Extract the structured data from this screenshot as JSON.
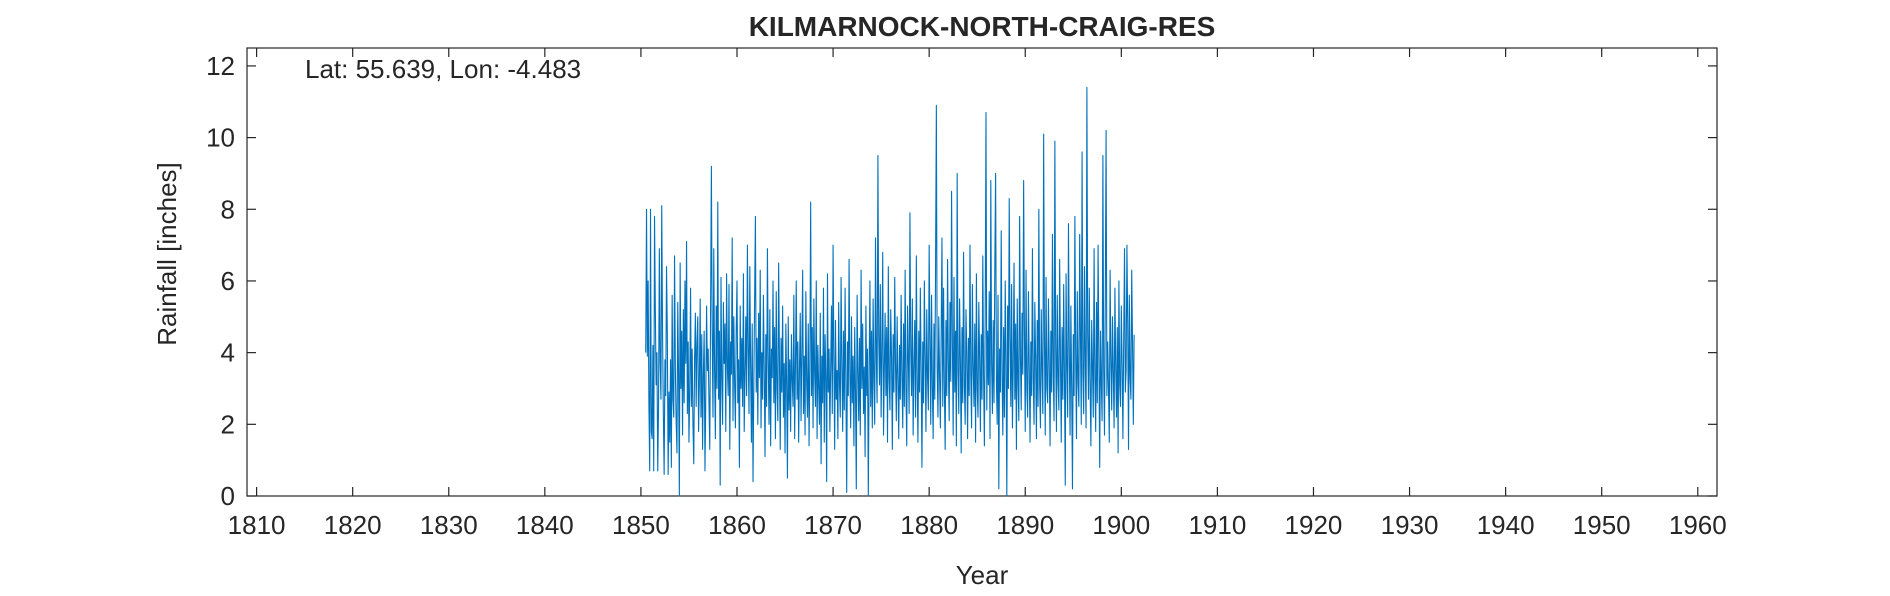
{
  "chart_data": {
    "type": "line",
    "title": "KILMARNOCK-NORTH-CRAIG-RES",
    "annotation": "Lat: 55.639, Lon: -4.483",
    "xlabel": "Year",
    "ylabel": "Rainfall [inches]",
    "xlim": [
      1809,
      1962
    ],
    "ylim": [
      0,
      12.5
    ],
    "xticks": [
      1810,
      1820,
      1830,
      1840,
      1850,
      1860,
      1870,
      1880,
      1890,
      1900,
      1910,
      1920,
      1930,
      1940,
      1950,
      1960
    ],
    "yticks": [
      0,
      2,
      4,
      6,
      8,
      10,
      12
    ],
    "grid": false,
    "legend": "none",
    "series": [
      {
        "color": "#0072BD",
        "x_start": 1850.5,
        "step": 0.0833333,
        "values": [
          4.0,
          8.0,
          3.9,
          6.0,
          2.5,
          0.7,
          8.0,
          1.8,
          1.6,
          4.2,
          0.7,
          7.8,
          5.2,
          3.1,
          4.0,
          0.7,
          2.5,
          6.9,
          3.7,
          2.7,
          8.1,
          4.6,
          2.3,
          0.6,
          3.8,
          2.8,
          6.4,
          4.5,
          0.6,
          2.9,
          1.5,
          3.8,
          0.8,
          5.6,
          2.7,
          2.2,
          6.7,
          3.6,
          2.1,
          1.2,
          5.4,
          3.4,
          0.0,
          6.5,
          3.0,
          4.6,
          1.7,
          5.2,
          2.6,
          6.0,
          3.7,
          7.1,
          2.3,
          4.3,
          1.5,
          3.0,
          5.8,
          2.5,
          4.1,
          2.0,
          0.9,
          3.8,
          5.1,
          2.5,
          4.3,
          5.0,
          1.8,
          3.2,
          5.5,
          2.2,
          4.5,
          1.3,
          3.4,
          4.6,
          0.7,
          2.7,
          5.3,
          3.5,
          4.1,
          2.6,
          1.3,
          5.2,
          9.2,
          4.6,
          2.2,
          6.9,
          3.5,
          1.6,
          5.3,
          3.0,
          8.2,
          2.7,
          4.6,
          0.3,
          6.1,
          3.3,
          2.0,
          5.4,
          3.7,
          4.8,
          1.8,
          6.2,
          3.6,
          2.8,
          5.9,
          1.3,
          4.3,
          3.4,
          7.2,
          2.1,
          5.0,
          3.2,
          1.9,
          4.6,
          6.0,
          2.6,
          3.8,
          0.8,
          5.3,
          3.0,
          4.4,
          2.5,
          6.2,
          1.8,
          3.4,
          5.0,
          2.8,
          7.0,
          4.1,
          2.3,
          6.4,
          3.6,
          1.5,
          4.8,
          0.4,
          3.1,
          5.5,
          7.8,
          2.9,
          4.4,
          2.0,
          5.1,
          3.3,
          6.3,
          1.9,
          4.0,
          2.7,
          5.6,
          3.5,
          1.1,
          4.5,
          2.5,
          6.9,
          3.8,
          2.0,
          5.2,
          1.4,
          4.1,
          3.3,
          6.0,
          2.6,
          4.7,
          1.6,
          5.7,
          3.0,
          2.1,
          6.5,
          3.9,
          1.3,
          4.4,
          2.9,
          5.3,
          2.2,
          3.7,
          1.2,
          4.8,
          3.1,
          0.5,
          5.0,
          2.4,
          3.8,
          1.8,
          4.5,
          3.2,
          2.5,
          5.6,
          1.6,
          3.6,
          6.0,
          2.7,
          4.3,
          1.5,
          3.5,
          5.1,
          2.1,
          4.0,
          6.3,
          2.3,
          3.9,
          1.7,
          5.7,
          3.2,
          2.2,
          4.8,
          1.4,
          3.6,
          8.2,
          2.8,
          4.7,
          1.9,
          5.5,
          3.4,
          2.5,
          6.0,
          1.6,
          4.2,
          3.0,
          2.0,
          5.1,
          0.9,
          3.9,
          2.6,
          5.8,
          1.5,
          4.5,
          3.3,
          0.4,
          6.2,
          2.9,
          4.1,
          1.8,
          3.6,
          5.3,
          2.3,
          7.0,
          3.8,
          1.3,
          4.9,
          2.7,
          3.5,
          1.6,
          5.4,
          3.1,
          2.2,
          6.1,
          3.7,
          1.8,
          4.6,
          2.4,
          5.8,
          3.2,
          0.1,
          4.3,
          2.8,
          6.6,
          3.4,
          1.9,
          5.0,
          2.6,
          3.9,
          1.4,
          4.7,
          2.9,
          0.2,
          5.6,
          3.5,
          2.1,
          4.4,
          1.7,
          6.3,
          3.0,
          4.8,
          2.3,
          3.6,
          1.1,
          5.3,
          2.8,
          4.1,
          0.0,
          3.4,
          6.0,
          2.5,
          4.6,
          1.9,
          5.5,
          3.2,
          2.0,
          7.2,
          3.8,
          2.6,
          9.5,
          4.4,
          3.1,
          5.9,
          2.2,
          4.0,
          6.8,
          1.7,
          3.5,
          5.1,
          2.8,
          4.7,
          1.5,
          6.4,
          3.3,
          2.4,
          5.2,
          3.9,
          1.3,
          4.5,
          2.9,
          6.1,
          3.6,
          2.1,
          5.0,
          3.3,
          1.6,
          4.2,
          2.7,
          5.6,
          3.4,
          1.9,
          4.8,
          2.5,
          6.3,
          3.0,
          1.4,
          5.3,
          3.8,
          2.3,
          7.9,
          4.1,
          2.8,
          5.5,
          1.7,
          3.6,
          4.9,
          2.2,
          6.7,
          3.2,
          1.5,
          4.6,
          2.9,
          5.8,
          3.5,
          0.8,
          4.3,
          2.6,
          6.0,
          3.9,
          1.8,
          5.2,
          3.3,
          2.4,
          7.0,
          4.4,
          2.0,
          5.6,
          3.1,
          1.6,
          4.8,
          2.7,
          6.4,
          10.9,
          3.6,
          2.2,
          5.0,
          3.4,
          1.9,
          4.5,
          7.2,
          2.5,
          5.8,
          3.0,
          1.3,
          4.9,
          2.8,
          6.6,
          3.7,
          2.1,
          5.4,
          3.2,
          8.5,
          4.3,
          1.7,
          6.1,
          2.9,
          4.6,
          1.4,
          9.0,
          3.5,
          2.3,
          5.5,
          3.8,
          1.2,
          4.7,
          2.6,
          6.8,
          3.1,
          2.0,
          5.2,
          4.0,
          1.6,
          4.4,
          2.8,
          7.0,
          3.4,
          1.9,
          5.9,
          3.6,
          2.5,
          4.8,
          1.5,
          6.2,
          3.0,
          2.2,
          5.4,
          3.9,
          1.8,
          4.5,
          2.7,
          6.7,
          3.3,
          1.4,
          5.1,
          10.7,
          2.4,
          4.6,
          3.1,
          5.7,
          1.6,
          8.8,
          3.7,
          2.3,
          4.9,
          2.6,
          6.4,
          9.0,
          3.2,
          2.0,
          5.6,
          0.2,
          4.1,
          2.9,
          7.4,
          3.5,
          1.7,
          4.7,
          2.2,
          6.0,
          3.8,
          0.0,
          5.3,
          3.0,
          8.3,
          4.4,
          2.5,
          5.9,
          1.9,
          3.6,
          6.5,
          2.7,
          4.8,
          1.3,
          5.5,
          3.2,
          2.1,
          7.8,
          3.9,
          2.4,
          5.1,
          3.4,
          8.8,
          4.6,
          1.8,
          6.3,
          3.0,
          2.2,
          5.7,
          3.6,
          1.5,
          4.3,
          2.8,
          6.9,
          3.3,
          2.0,
          5.4,
          3.8,
          1.6,
          4.9,
          2.5,
          8.0,
          3.1,
          1.9,
          5.2,
          3.5,
          2.3,
          10.1,
          4.4,
          1.7,
          6.1,
          3.0,
          2.6,
          5.5,
          3.7,
          1.4,
          4.6,
          2.9,
          7.3,
          3.4,
          2.1,
          9.9,
          4.2,
          1.8,
          5.6,
          3.2,
          2.4,
          6.6,
          3.8,
          1.5,
          4.7,
          2.7,
          5.9,
          3.3,
          0.3,
          6.2,
          3.6,
          2.2,
          7.6,
          4.1,
          1.7,
          5.3,
          3.0,
          0.2,
          4.5,
          2.8,
          7.8,
          3.9,
          1.6,
          5.7,
          3.2,
          2.5,
          7.3,
          4.4,
          2.0,
          9.6,
          3.4,
          2.3,
          6.4,
          3.7,
          1.9,
          11.4,
          4.5,
          2.7,
          5.8,
          3.1,
          1.4,
          4.9,
          3.6,
          2.2,
          6.9,
          3.3,
          1.8,
          5.4,
          2.6,
          7.0,
          3.9,
          0.8,
          4.6,
          3.2,
          2.1,
          9.5,
          3.5,
          1.7,
          5.6,
          10.2,
          2.8,
          4.3,
          3.0,
          1.5,
          6.3,
          3.8,
          2.4,
          5.0,
          3.4,
          1.9,
          5.8,
          3.6,
          2.2,
          4.7,
          1.2,
          6.0,
          3.1,
          2.5,
          5.3,
          3.7,
          1.6,
          4.4,
          6.9,
          2.9,
          3.5,
          7.0,
          4.8,
          1.3,
          5.6,
          3.3,
          2.7,
          6.3,
          4.3,
          2.0,
          4.5
        ]
      }
    ]
  }
}
